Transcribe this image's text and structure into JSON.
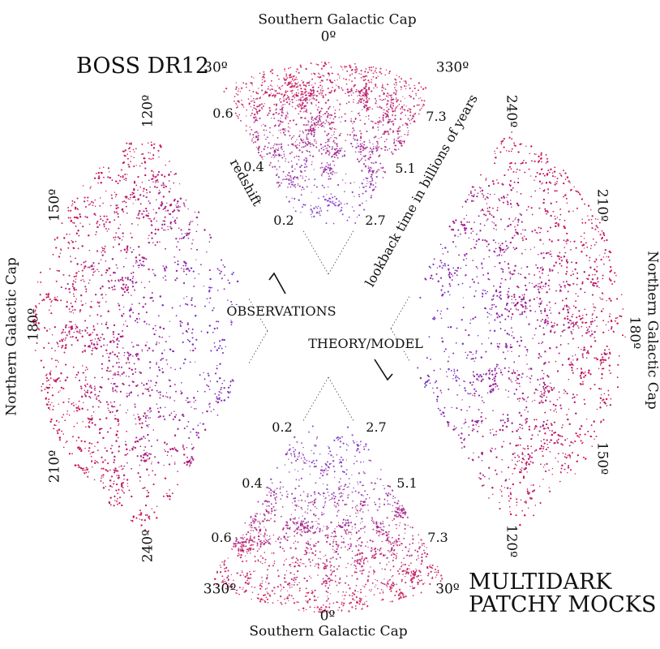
{
  "colors": {
    "near": "#6b2fd0",
    "far": "#d0104a",
    "mid": "#8a1a9a"
  },
  "title_observations": "BOSS DR12",
  "title_mocks_line1": "MULTIDARK",
  "title_mocks_line2": "PATCHY MOCKS",
  "label_observations": "OBSERVATIONS",
  "label_model": "THEORY/MODEL",
  "axis_redshift": "redshift",
  "axis_lookback": "lookback time in billions of years",
  "caps": {
    "top": "Southern Galactic Cap",
    "bottom": "Southern Galactic Cap",
    "left": "Northern Galactic Cap",
    "right": "Northern Galactic Cap"
  },
  "angles": {
    "top": [
      "0º",
      "30º",
      "330º"
    ],
    "bottom": [
      "0º",
      "330º",
      "30º"
    ],
    "left": [
      "120º",
      "150º",
      "180º",
      "210º",
      "240º"
    ],
    "right": [
      "240º",
      "210º",
      "180º",
      "150º",
      "120º"
    ]
  },
  "redshift_ticks": [
    "0.2",
    "0.4",
    "0.6"
  ],
  "lookback_ticks": [
    "2.7",
    "5.1",
    "7.3"
  ]
}
